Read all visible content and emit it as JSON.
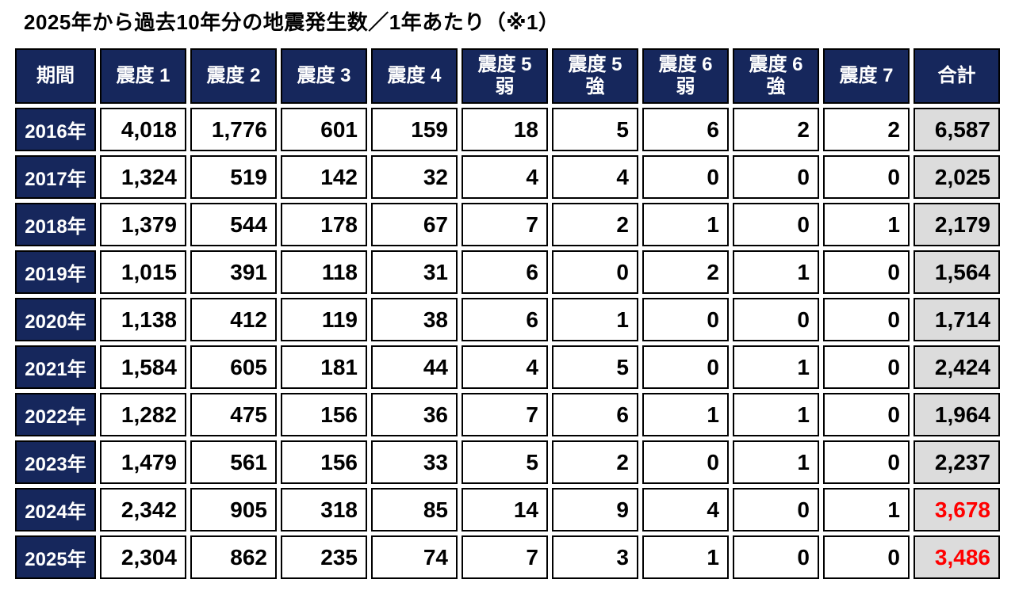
{
  "page": {
    "title": "2025年から過去10年分の地震発生数／1年あたり（※1）"
  },
  "table": {
    "headers": [
      "期間",
      "震度 1",
      "震度 2",
      "震度 3",
      "震度 4",
      "震度 5\n弱",
      "震度 5\n強",
      "震度 6\n弱",
      "震度 6\n強",
      "震度 7",
      "合計"
    ],
    "rows": [
      {
        "period": "2016年",
        "cells": [
          "4,018",
          "1,776",
          "601",
          "159",
          "18",
          "5",
          "6",
          "2",
          "2"
        ],
        "total": "6,587",
        "total_color": "black"
      },
      {
        "period": "2017年",
        "cells": [
          "1,324",
          "519",
          "142",
          "32",
          "4",
          "4",
          "0",
          "0",
          "0"
        ],
        "total": "2,025",
        "total_color": "black"
      },
      {
        "period": "2018年",
        "cells": [
          "1,379",
          "544",
          "178",
          "67",
          "7",
          "2",
          "1",
          "0",
          "1"
        ],
        "total": "2,179",
        "total_color": "black"
      },
      {
        "period": "2019年",
        "cells": [
          "1,015",
          "391",
          "118",
          "31",
          "6",
          "0",
          "2",
          "1",
          "0"
        ],
        "total": "1,564",
        "total_color": "black"
      },
      {
        "period": "2020年",
        "cells": [
          "1,138",
          "412",
          "119",
          "38",
          "6",
          "1",
          "0",
          "0",
          "0"
        ],
        "total": "1,714",
        "total_color": "black"
      },
      {
        "period": "2021年",
        "cells": [
          "1,584",
          "605",
          "181",
          "44",
          "4",
          "5",
          "0",
          "1",
          "0"
        ],
        "total": "2,424",
        "total_color": "black"
      },
      {
        "period": "2022年",
        "cells": [
          "1,282",
          "475",
          "156",
          "36",
          "7",
          "6",
          "1",
          "1",
          "0"
        ],
        "total": "1,964",
        "total_color": "black"
      },
      {
        "period": "2023年",
        "cells": [
          "1,479",
          "561",
          "156",
          "33",
          "5",
          "2",
          "0",
          "1",
          "0"
        ],
        "total": "2,237",
        "total_color": "black"
      },
      {
        "period": "2024年",
        "cells": [
          "2,342",
          "905",
          "318",
          "85",
          "14",
          "9",
          "4",
          "0",
          "1"
        ],
        "total": "3,678",
        "total_color": "red"
      },
      {
        "period": "2025年",
        "cells": [
          "2,304",
          "862",
          "235",
          "74",
          "7",
          "3",
          "1",
          "0",
          "0"
        ],
        "total": "3,486",
        "total_color": "red"
      }
    ]
  },
  "colors": {
    "header_bg": "#16275c",
    "header_text": "#ffffff",
    "cell_bg": "#ffffff",
    "total_bg": "#dcdcdc",
    "border": "#000000",
    "highlight_red": "#ff0000",
    "body_text": "#000000"
  },
  "chart_data": {
    "type": "table",
    "title": "2025年から過去10年分の地震発生数／1年あたり（※1）",
    "columns": [
      "期間",
      "震度1",
      "震度2",
      "震度3",
      "震度4",
      "震度5弱",
      "震度5強",
      "震度6弱",
      "震度6強",
      "震度7",
      "合計"
    ],
    "rows": [
      [
        "2016年",
        4018,
        1776,
        601,
        159,
        18,
        5,
        6,
        2,
        2,
        6587
      ],
      [
        "2017年",
        1324,
        519,
        142,
        32,
        4,
        4,
        0,
        0,
        0,
        2025
      ],
      [
        "2018年",
        1379,
        544,
        178,
        67,
        7,
        2,
        1,
        0,
        1,
        2179
      ],
      [
        "2019年",
        1015,
        391,
        118,
        31,
        6,
        0,
        2,
        1,
        0,
        1564
      ],
      [
        "2020年",
        1138,
        412,
        119,
        38,
        6,
        1,
        0,
        0,
        0,
        1714
      ],
      [
        "2021年",
        1584,
        605,
        181,
        44,
        4,
        5,
        0,
        1,
        0,
        2424
      ],
      [
        "2022年",
        1282,
        475,
        156,
        36,
        7,
        6,
        1,
        1,
        0,
        1964
      ],
      [
        "2023年",
        1479,
        561,
        156,
        33,
        5,
        2,
        0,
        1,
        0,
        2237
      ],
      [
        "2024年",
        2342,
        905,
        318,
        85,
        14,
        9,
        4,
        0,
        1,
        3678
      ],
      [
        "2025年",
        2304,
        862,
        235,
        74,
        7,
        3,
        1,
        0,
        0,
        3486
      ]
    ],
    "highlighted_total_rows": [
      "2024年",
      "2025年"
    ],
    "legend_position": "none",
    "grid": true
  }
}
